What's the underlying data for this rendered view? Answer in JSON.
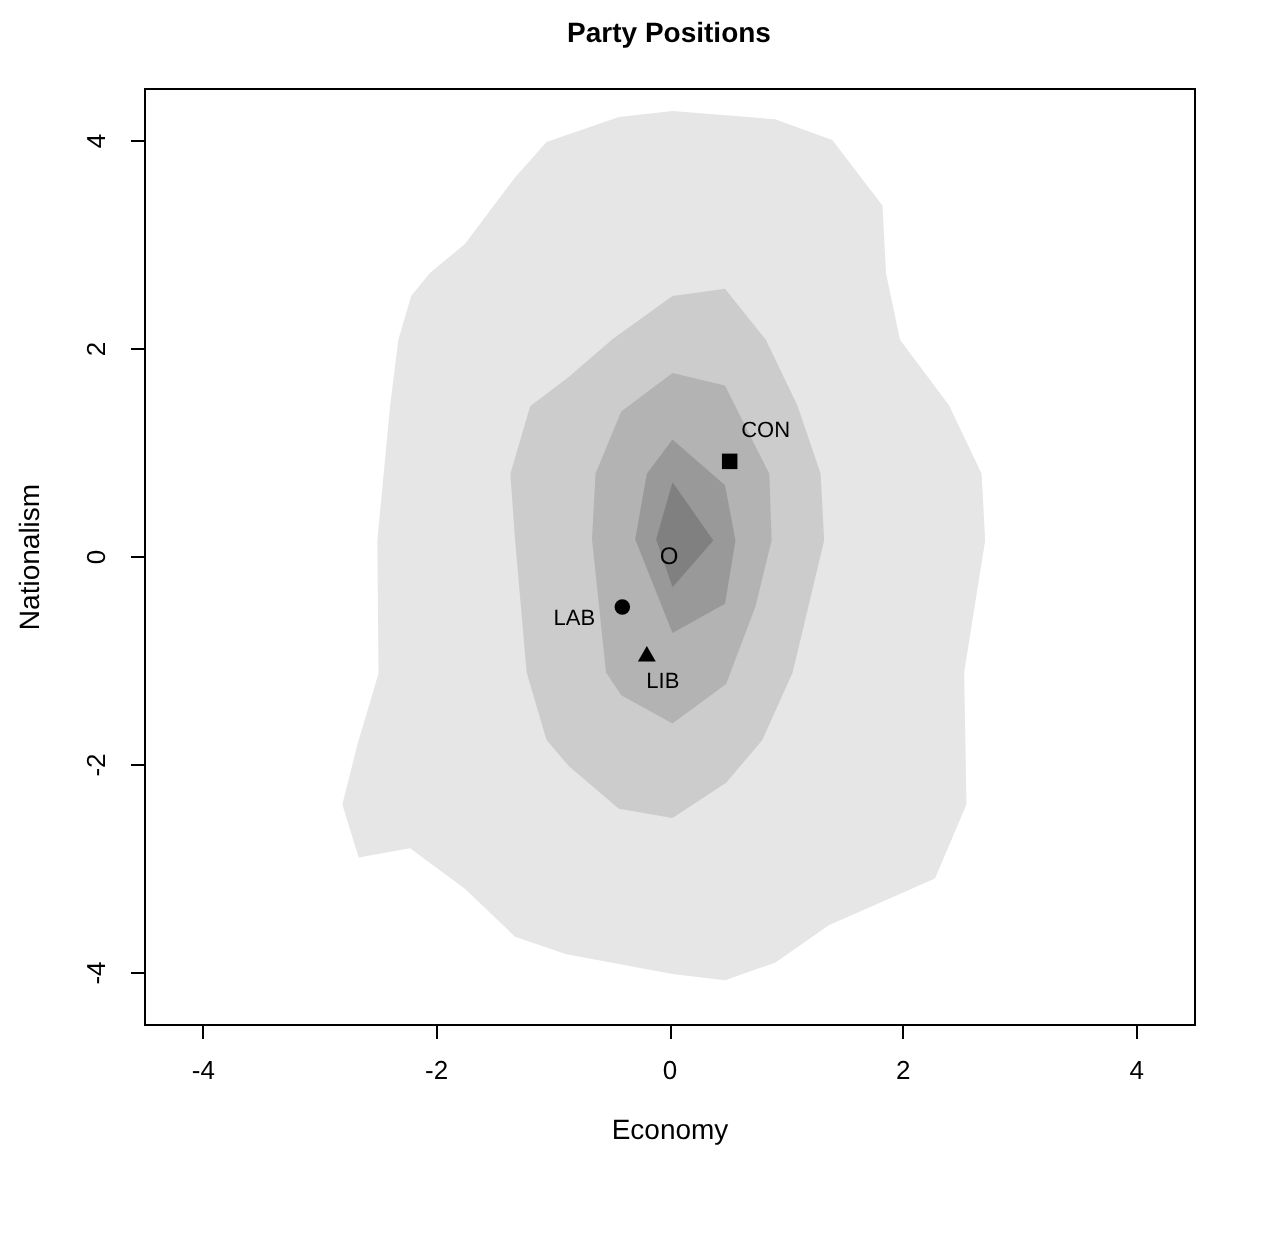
{
  "chart_data": {
    "type": "scatter",
    "title": "Party Positions",
    "xlabel": "Economy",
    "ylabel": "Nationalism",
    "xlim": [
      -4.5,
      4.5
    ],
    "ylim": [
      -4.5,
      4.5
    ],
    "xticks": [
      -4,
      -2,
      0,
      2,
      4
    ],
    "yticks": [
      -4,
      -2,
      0,
      2,
      4
    ],
    "annotations": [
      {
        "text": "O",
        "x": 0,
        "y": 0
      }
    ],
    "series": [
      {
        "type": "area",
        "color": "#e6e6e6",
        "x": [
          0.03,
          0.91,
          1.4,
          1.83,
          1.86,
          1.98,
          2.4,
          2.68,
          2.71,
          2.53,
          2.55,
          2.28,
          1.37,
          0.91,
          0.48,
          0.03,
          -0.88,
          -1.32,
          -1.75,
          -2.22,
          -2.66,
          -2.8,
          -2.67,
          -2.49,
          -2.5,
          -2.39,
          -2.32,
          -2.21,
          -2.05,
          -1.75,
          -1.32,
          -1.05,
          -0.43
        ],
        "values": [
          4.28,
          4.2,
          4.0,
          3.37,
          2.72,
          2.08,
          1.45,
          0.79,
          0.15,
          -1.12,
          -2.39,
          -3.1,
          -3.55,
          -3.91,
          -4.08,
          -4.02,
          -3.83,
          -3.66,
          -3.2,
          -2.81,
          -2.9,
          -2.39,
          -1.81,
          -1.13,
          0.15,
          1.45,
          2.08,
          2.5,
          2.72,
          3.0,
          3.64,
          3.98,
          4.22
        ]
      },
      {
        "type": "area",
        "color": "#cccccc",
        "x": [
          0.03,
          0.48,
          0.83,
          1.1,
          1.3,
          1.33,
          1.06,
          0.8,
          0.49,
          0.03,
          -0.43,
          -0.86,
          -1.05,
          -1.22,
          -1.32,
          -1.36,
          -1.19,
          -0.86,
          -0.48
        ],
        "values": [
          2.5,
          2.57,
          2.08,
          1.45,
          0.79,
          0.15,
          -1.12,
          -1.77,
          -2.18,
          -2.52,
          -2.43,
          -2.02,
          -1.77,
          -1.12,
          0.16,
          0.79,
          1.44,
          1.72,
          2.09
        ]
      },
      {
        "type": "area",
        "color": "#b3b3b3",
        "x": [
          0.03,
          0.48,
          0.86,
          0.88,
          0.74,
          0.49,
          0.03,
          -0.41,
          -0.54,
          -0.66,
          -0.63,
          -0.41
        ],
        "values": [
          1.76,
          1.64,
          0.79,
          0.15,
          -0.49,
          -1.23,
          -1.61,
          -1.34,
          -1.12,
          0.16,
          0.79,
          1.39
        ]
      },
      {
        "type": "area",
        "color": "#999999",
        "x": [
          0.03,
          0.48,
          0.57,
          0.48,
          0.03,
          -0.29,
          -0.19
        ],
        "values": [
          1.12,
          0.68,
          0.15,
          -0.46,
          -0.74,
          0.16,
          0.79
        ]
      },
      {
        "type": "area",
        "color": "#808080",
        "x": [
          0.03,
          0.38,
          0.03,
          -0.11
        ],
        "values": [
          0.71,
          0.15,
          -0.3,
          0.16
        ]
      },
      {
        "name": "CON",
        "color": "#000000",
        "marker": "square",
        "x": [
          0.52
        ],
        "values": [
          0.91
        ]
      },
      {
        "name": "LAB",
        "color": "#000000",
        "marker": "circle",
        "x": [
          -0.4
        ],
        "values": [
          -0.49
        ]
      },
      {
        "name": "LIB",
        "color": "#000000",
        "marker": "triangle",
        "x": [
          -0.19
        ],
        "values": [
          -0.94
        ]
      }
    ]
  }
}
